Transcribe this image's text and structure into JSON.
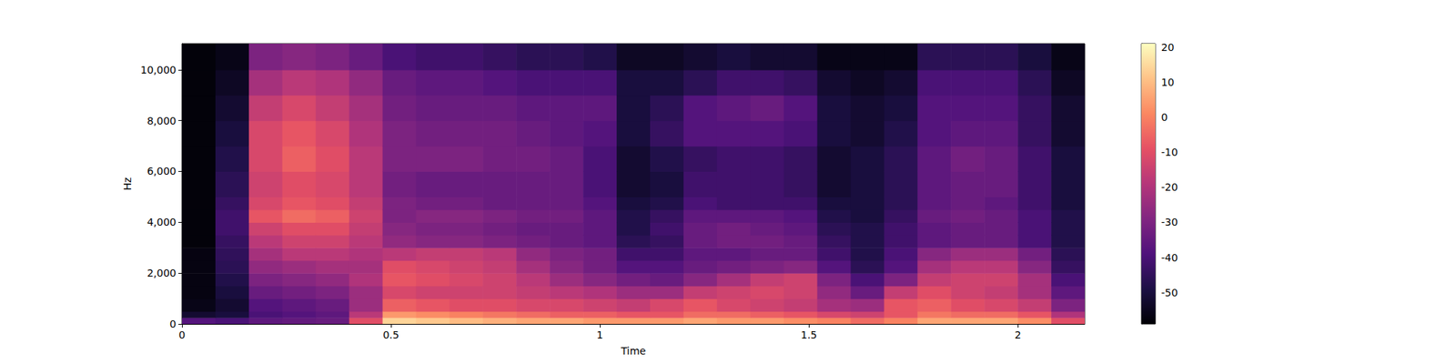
{
  "chart_data": {
    "type": "heatmap",
    "x_label": "Time",
    "y_label": "Hz",
    "xlim": [
      0,
      2.16
    ],
    "ylim": [
      0,
      11025
    ],
    "xticks": [
      0,
      0.5,
      1,
      1.5,
      2
    ],
    "yticks": [
      0,
      2000,
      4000,
      6000,
      8000,
      10000
    ],
    "x_bins": [
      0,
      0.08,
      0.16,
      0.24,
      0.32,
      0.4,
      0.48,
      0.56,
      0.64,
      0.72,
      0.8,
      0.88,
      0.96,
      1.04,
      1.12,
      1.2,
      1.28,
      1.36,
      1.44,
      1.52,
      1.6,
      1.68,
      1.76,
      1.84,
      1.92,
      2,
      2.08,
      2.16
    ],
    "y_bins": [
      0,
      250,
      500,
      1000,
      1500,
      2000,
      2500,
      3000,
      3500,
      4000,
      4500,
      5000,
      6000,
      7000,
      8000,
      9000,
      10000,
      11025
    ],
    "cells": [
      [
        -38,
        -52,
        -56,
        -57,
        -57,
        -57,
        -57,
        -58,
        -58,
        -58,
        -58,
        -58,
        -58,
        -58,
        -58,
        -58,
        -58
      ],
      [
        -40,
        -50,
        -52,
        -50,
        -48,
        -46,
        -45,
        -44,
        -42,
        -42,
        -44,
        -46,
        -48,
        -50,
        -52,
        -54,
        -56
      ],
      [
        -36,
        -40,
        -38,
        -34,
        -30,
        -26,
        -22,
        -18,
        -14,
        -8,
        -12,
        -14,
        -12,
        -12,
        -16,
        -22,
        -30
      ],
      [
        -35,
        -38,
        -36,
        -32,
        -28,
        -24,
        -18,
        -14,
        -10,
        -4,
        -8,
        -10,
        -6,
        -8,
        -12,
        -18,
        -28
      ],
      [
        -34,
        -36,
        -34,
        -30,
        -26,
        -22,
        -18,
        -14,
        -10,
        -6,
        -10,
        -12,
        -10,
        -12,
        -16,
        -20,
        -30
      ],
      [
        -10,
        -18,
        -24,
        -24,
        -20,
        -22,
        -20,
        -18,
        -16,
        -14,
        -16,
        -18,
        -18,
        -20,
        -22,
        -26,
        -34
      ],
      [
        14,
        4,
        -6,
        -12,
        -8,
        -10,
        -18,
        -26,
        -28,
        -30,
        -30,
        -32,
        -30,
        -30,
        -32,
        -34,
        -40
      ],
      [
        12,
        2,
        -8,
        -14,
        -10,
        -12,
        -16,
        -28,
        -30,
        -28,
        -32,
        -34,
        -30,
        -32,
        -34,
        -36,
        -42
      ],
      [
        10,
        0,
        -10,
        -14,
        -12,
        -14,
        -16,
        -28,
        -30,
        -28,
        -32,
        -34,
        -30,
        -32,
        -34,
        -36,
        -42
      ],
      [
        8,
        -2,
        -10,
        -14,
        -14,
        -16,
        -18,
        -30,
        -32,
        -30,
        -34,
        -34,
        -32,
        -32,
        -34,
        -38,
        -44
      ],
      [
        6,
        -4,
        -12,
        -16,
        -18,
        -22,
        -26,
        -32,
        -34,
        -32,
        -34,
        -34,
        -32,
        -34,
        -36,
        -40,
        -46
      ],
      [
        6,
        -6,
        -12,
        -18,
        -24,
        -28,
        -30,
        -34,
        -34,
        -32,
        -34,
        -34,
        -34,
        -36,
        -36,
        -40,
        -46
      ],
      [
        4,
        -6,
        -14,
        -20,
        -28,
        -32,
        -32,
        -36,
        -36,
        -36,
        -38,
        -40,
        -40,
        -38,
        -36,
        -40,
        -48
      ],
      [
        4,
        -8,
        -16,
        -24,
        -32,
        -38,
        -42,
        -46,
        -48,
        -48,
        -50,
        -52,
        -52,
        -50,
        -50,
        -50,
        -54
      ],
      [
        4,
        -8,
        -12,
        -24,
        -34,
        -38,
        -42,
        -44,
        -42,
        -44,
        -48,
        -50,
        -48,
        -44,
        -46,
        -50,
        -54
      ],
      [
        6,
        -4,
        -8,
        -16,
        -28,
        -34,
        -36,
        -34,
        -34,
        -36,
        -40,
        -42,
        -44,
        -38,
        -38,
        -46,
        -52
      ],
      [
        4,
        -4,
        -12,
        -14,
        -22,
        -32,
        -36,
        -32,
        -32,
        -36,
        -42,
        -42,
        -42,
        -38,
        -36,
        -42,
        -50
      ],
      [
        4,
        -6,
        -14,
        -12,
        -16,
        -30,
        -34,
        -32,
        -34,
        -36,
        -42,
        -42,
        -42,
        -38,
        -34,
        -42,
        -52
      ],
      [
        2,
        -8,
        -16,
        -14,
        -14,
        -28,
        -34,
        -34,
        -36,
        -38,
        -42,
        -44,
        -44,
        -40,
        -38,
        -44,
        -52
      ],
      [
        0,
        -12,
        -22,
        -26,
        -30,
        -38,
        -42,
        -44,
        -46,
        -48,
        -50,
        -52,
        -52,
        -50,
        -50,
        -52,
        -56
      ],
      [
        -4,
        -14,
        -24,
        -34,
        -40,
        -46,
        -48,
        -48,
        -48,
        -50,
        -50,
        -50,
        -50,
        -52,
        -52,
        -54,
        -56
      ],
      [
        0,
        -8,
        -8,
        -16,
        -30,
        -38,
        -40,
        -42,
        -42,
        -44,
        -46,
        -46,
        -46,
        -48,
        -50,
        -52,
        -56
      ],
      [
        6,
        -2,
        -6,
        -10,
        -16,
        -22,
        -28,
        -36,
        -36,
        -34,
        -36,
        -36,
        -36,
        -38,
        -38,
        -40,
        -46
      ],
      [
        6,
        -4,
        -10,
        -14,
        -14,
        -18,
        -24,
        -34,
        -34,
        -32,
        -34,
        -34,
        -32,
        -36,
        -38,
        -40,
        -46
      ],
      [
        6,
        -4,
        -12,
        -16,
        -14,
        -18,
        -24,
        -34,
        -34,
        -34,
        -36,
        -34,
        -34,
        -36,
        -38,
        -40,
        -46
      ],
      [
        2,
        -8,
        -16,
        -22,
        -22,
        -28,
        -32,
        -40,
        -40,
        -40,
        -42,
        -42,
        -42,
        -44,
        -44,
        -46,
        -50
      ],
      [
        -10,
        -20,
        -30,
        -36,
        -40,
        -44,
        -46,
        -48,
        -48,
        -48,
        -50,
        -50,
        -50,
        -52,
        -52,
        -54,
        -56
      ]
    ],
    "colorbar_range": [
      -59,
      21
    ],
    "colorbar_ticks": [
      -50,
      -40,
      -30,
      -20,
      -10,
      0,
      10,
      20
    ]
  }
}
